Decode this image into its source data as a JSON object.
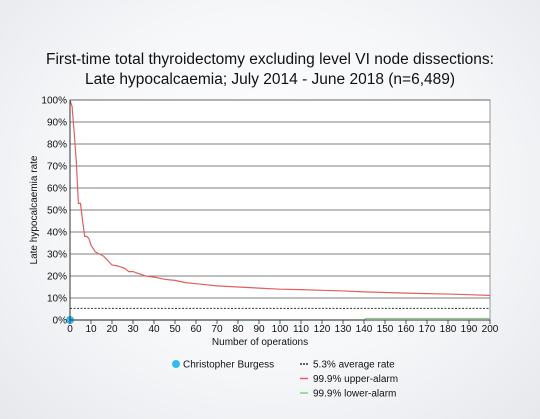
{
  "chart_data": {
    "type": "line",
    "title_line1": "First-time total thyroidectomy excluding level VI node dissections:",
    "title_line2": "Late hypocalcaemia; July 2014 - June 2018 (n=6,489)",
    "xlabel": "Number of operations",
    "ylabel": "Late hypocalcaemia rate",
    "xlim": [
      0,
      200
    ],
    "ylim": [
      0,
      100
    ],
    "x_ticks": [
      0,
      10,
      20,
      30,
      40,
      50,
      60,
      70,
      80,
      90,
      100,
      110,
      120,
      130,
      140,
      150,
      160,
      170,
      180,
      190,
      200
    ],
    "y_ticks": [
      0,
      10,
      20,
      30,
      40,
      50,
      60,
      70,
      80,
      90,
      100
    ],
    "y_tick_labels": [
      "0%",
      "10%",
      "20%",
      "30%",
      "40%",
      "50%",
      "60%",
      "70%",
      "80%",
      "90%",
      "100%"
    ],
    "grid": true,
    "series": [
      {
        "name": "5.3% average rate",
        "color": "#333333",
        "style": "dashed",
        "x": [
          0,
          200
        ],
        "y": [
          5.3,
          5.3
        ]
      },
      {
        "name": "99.9% upper-alarm",
        "color": "#e06060",
        "style": "solid",
        "x": [
          0,
          1,
          2,
          3,
          4,
          5,
          6,
          7,
          8,
          9,
          10,
          12,
          14,
          16,
          18,
          20,
          23,
          26,
          28,
          30,
          33,
          36,
          40,
          45,
          50,
          55,
          60,
          70,
          80,
          90,
          100,
          110,
          120,
          130,
          140,
          150,
          160,
          170,
          180,
          190,
          200
        ],
        "y": [
          100,
          97,
          85,
          72,
          53,
          53,
          45,
          38,
          38,
          37,
          34,
          31,
          30,
          29,
          27,
          25,
          24.5,
          23.5,
          22,
          22,
          21,
          20,
          19.5,
          18.5,
          18,
          17,
          16.5,
          15.5,
          15,
          14.5,
          14,
          13.8,
          13.5,
          13.2,
          12.8,
          12.5,
          12.2,
          12,
          11.8,
          11.5,
          11.2
        ]
      },
      {
        "name": "99.9% lower-alarm",
        "color": "#88cc88",
        "style": "solid",
        "x": [
          0,
          140,
          141,
          200
        ],
        "y": [
          0,
          0,
          0.7,
          0.7
        ]
      }
    ],
    "points": [
      {
        "name": "Christopher Burgess",
        "color": "#33bbee",
        "x": 0,
        "y": 0
      }
    ],
    "legend_position": "bottom"
  }
}
